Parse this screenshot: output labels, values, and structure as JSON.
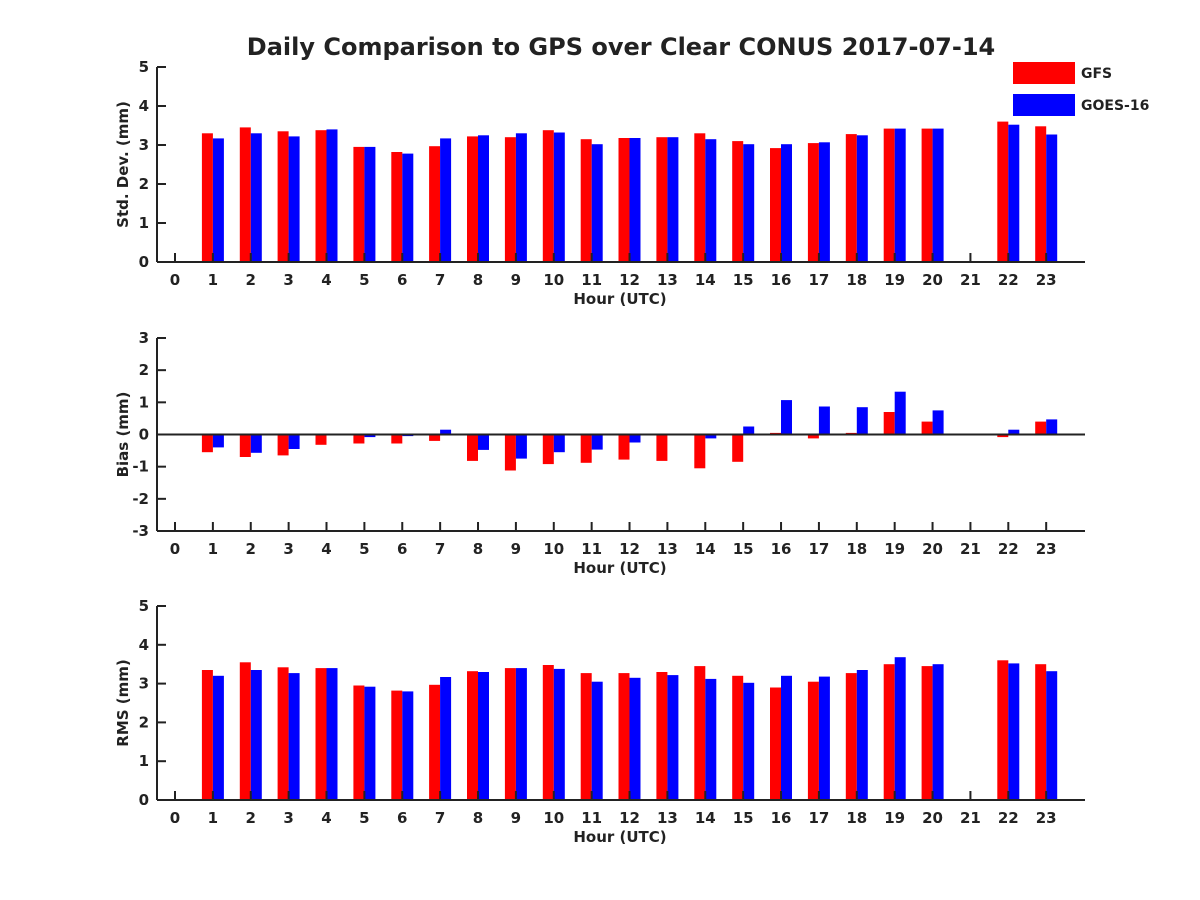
{
  "chart_data": {
    "type": "bar",
    "title": "Daily Comparison to GPS over Clear CONUS 2017-07-14",
    "legend": {
      "position": "top-right",
      "entries": [
        {
          "label": "GFS",
          "color": "#ff0000"
        },
        {
          "label": "GOES-16",
          "color": "#0000ff"
        }
      ]
    },
    "categories": [
      "0",
      "1",
      "2",
      "3",
      "4",
      "5",
      "6",
      "7",
      "8",
      "9",
      "10",
      "11",
      "12",
      "13",
      "14",
      "15",
      "16",
      "17",
      "18",
      "19",
      "20",
      "21",
      "22",
      "23"
    ],
    "panels": [
      {
        "ylabel": "Std. Dev. (mm)",
        "xlabel": "Hour (UTC)",
        "ylim": [
          0,
          5
        ],
        "yticks": [
          "0",
          "1",
          "2",
          "3",
          "4",
          "5"
        ],
        "series": [
          {
            "name": "GFS",
            "values": [
              null,
              3.3,
              3.45,
              3.35,
              3.38,
              2.95,
              2.82,
              2.97,
              3.22,
              3.2,
              3.38,
              3.15,
              3.18,
              3.2,
              3.3,
              3.1,
              2.92,
              3.05,
              3.28,
              3.42,
              3.42,
              null,
              3.6,
              3.48
            ]
          },
          {
            "name": "GOES-16",
            "values": [
              null,
              3.17,
              3.3,
              3.22,
              3.4,
              2.95,
              2.78,
              3.17,
              3.25,
              3.3,
              3.32,
              3.02,
              3.18,
              3.2,
              3.15,
              3.02,
              3.02,
              3.07,
              3.25,
              3.42,
              3.42,
              null,
              3.52,
              3.27
            ]
          }
        ]
      },
      {
        "ylabel": "Bias (mm)",
        "xlabel": "Hour (UTC)",
        "ylim": [
          -3,
          3
        ],
        "yticks": [
          "-3",
          "-2",
          "-1",
          "0",
          "1",
          "2",
          "3"
        ],
        "series": [
          {
            "name": "GFS",
            "values": [
              null,
              -0.55,
              -0.7,
              -0.65,
              -0.32,
              -0.28,
              -0.28,
              -0.2,
              -0.82,
              -1.12,
              -0.92,
              -0.88,
              -0.78,
              -0.82,
              -1.05,
              -0.85,
              0.05,
              -0.12,
              0.05,
              0.7,
              0.4,
              null,
              -0.08,
              0.4
            ]
          },
          {
            "name": "GOES-16",
            "values": [
              null,
              -0.4,
              -0.57,
              -0.45,
              0.02,
              -0.08,
              -0.05,
              0.15,
              -0.48,
              -0.75,
              -0.55,
              -0.47,
              -0.25,
              -0.02,
              -0.12,
              0.25,
              1.07,
              0.87,
              0.85,
              1.33,
              0.75,
              null,
              0.15,
              0.47
            ]
          }
        ]
      },
      {
        "ylabel": "RMS (mm)",
        "xlabel": "Hour (UTC)",
        "ylim": [
          0,
          5
        ],
        "yticks": [
          "0",
          "1",
          "2",
          "3",
          "4",
          "5"
        ],
        "series": [
          {
            "name": "GFS",
            "values": [
              null,
              3.35,
              3.55,
              3.42,
              3.4,
              2.95,
              2.82,
              2.97,
              3.32,
              3.4,
              3.48,
              3.27,
              3.27,
              3.3,
              3.45,
              3.2,
              2.9,
              3.05,
              3.27,
              3.5,
              3.45,
              null,
              3.6,
              3.5
            ]
          },
          {
            "name": "GOES-16",
            "values": [
              null,
              3.2,
              3.35,
              3.27,
              3.4,
              2.92,
              2.8,
              3.17,
              3.3,
              3.4,
              3.38,
              3.05,
              3.15,
              3.22,
              3.12,
              3.02,
              3.2,
              3.18,
              3.35,
              3.68,
              3.5,
              null,
              3.52,
              3.32
            ]
          }
        ]
      }
    ]
  }
}
